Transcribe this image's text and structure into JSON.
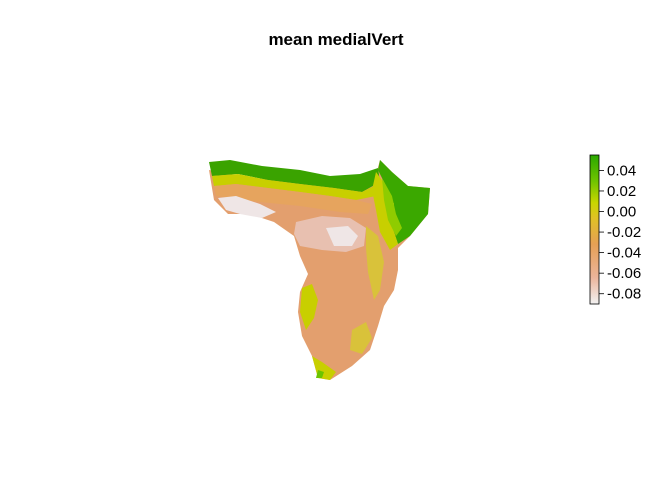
{
  "map": {
    "title": "mean medialVert",
    "region": "southern and eastern Africa raster"
  },
  "legend": {
    "ticks": [
      "0.04",
      "0.02",
      "0.00",
      "-0.02",
      "-0.04",
      "-0.06",
      "-0.08"
    ],
    "tick_values": [
      0.04,
      0.02,
      0.0,
      -0.02,
      -0.04,
      -0.06,
      -0.08
    ],
    "range": [
      -0.09,
      0.055
    ],
    "colors": [
      "#f2f2f2",
      "#ebb49a",
      "#e6a055",
      "#e0c224",
      "#c8d600",
      "#72c400",
      "#2aa800"
    ]
  },
  "colors": {
    "north_band": "#3aa300",
    "east_coast": "#3ba800",
    "body": "#e39f6e",
    "body_alt": "#e6a45e",
    "inner": "#e8c0b0",
    "pale": "#efe6e6",
    "yellow_margin": "#c8cf00"
  }
}
